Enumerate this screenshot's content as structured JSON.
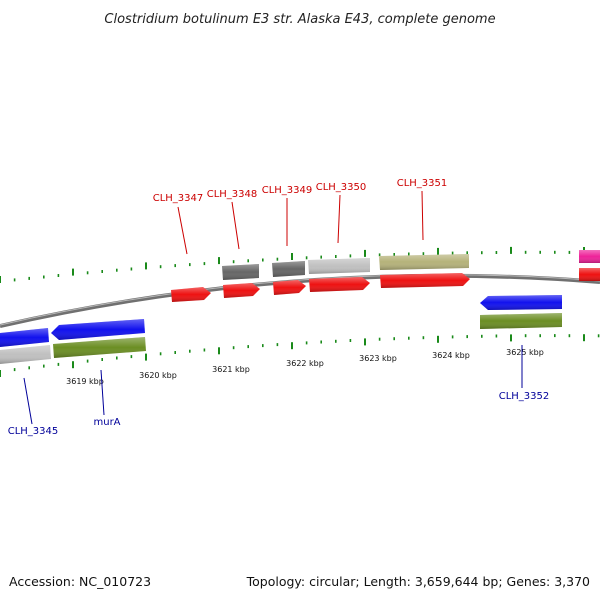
{
  "title": "Clostridium botulinum E3 str. Alaska E43, complete genome",
  "footer": {
    "accession": "Accession: NC_010723",
    "stats": "Topology: circular; Length: 3,659,644 bp; Genes: 3,370"
  },
  "colors": {
    "backbone": "#808080",
    "tick": "#1a8a1a",
    "label_forward": "#cc0000",
    "label_reverse": "#000099",
    "red": "#ee1111",
    "blue": "#1111ee",
    "olive": "#6b8e23",
    "khaki": "#b5b27a",
    "silver": "#c0c0c0",
    "darkgray": "#666666",
    "magenta": "#ee2299"
  },
  "scale_labels": [
    "3619 kbp",
    "3620 kbp",
    "3621 kbp",
    "3622 kbp",
    "3623 kbp",
    "3624 kbp",
    "3625 kbp"
  ],
  "gene_labels": [
    {
      "text": "CLH_3347",
      "strand": "forward"
    },
    {
      "text": "CLH_3348",
      "strand": "forward"
    },
    {
      "text": "CLH_3349",
      "strand": "forward"
    },
    {
      "text": "CLH_3350",
      "strand": "forward"
    },
    {
      "text": "CLH_3351",
      "strand": "forward"
    },
    {
      "text": "CLH_3345",
      "strand": "reverse"
    },
    {
      "text": "murA",
      "strand": "reverse"
    },
    {
      "text": "CLH_3352",
      "strand": "reverse"
    }
  ]
}
